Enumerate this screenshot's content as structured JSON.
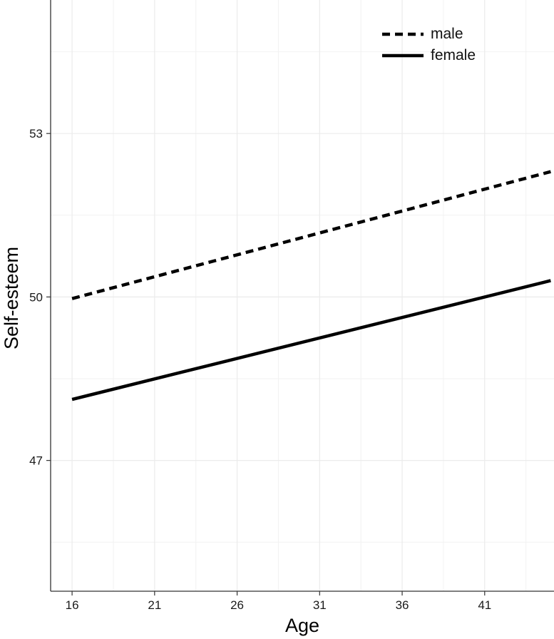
{
  "chart_data": {
    "type": "line",
    "title": "",
    "xlabel": "Age",
    "ylabel": "Self-esteem",
    "x_ticks": [
      16,
      21,
      26,
      31,
      36,
      41
    ],
    "y_ticks": [
      47,
      50,
      53
    ],
    "xlim": [
      14.7,
      45.2
    ],
    "ylim": [
      44.6,
      55.45
    ],
    "grid": true,
    "legend_position": "top-right",
    "series": [
      {
        "name": "male",
        "linestyle": "dashed",
        "color": "#000000",
        "points": [
          [
            16,
            49.97
          ],
          [
            45,
            52.3
          ]
        ]
      },
      {
        "name": "female",
        "linestyle": "solid",
        "color": "#000000",
        "points": [
          [
            16,
            48.12
          ],
          [
            45,
            50.3
          ]
        ]
      }
    ]
  }
}
